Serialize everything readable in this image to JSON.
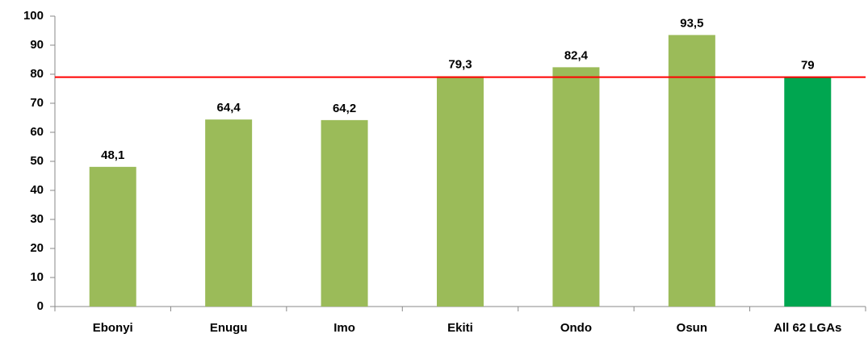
{
  "chart_data": {
    "type": "bar",
    "categories": [
      "Ebonyi",
      "Enugu",
      "Imo",
      "Ekiti",
      "Ondo",
      "Osun",
      "All 62 LGAs"
    ],
    "values": [
      48.1,
      64.4,
      64.2,
      79.3,
      82.4,
      93.5,
      79
    ],
    "value_labels": [
      "48,1",
      "64,4",
      "64,2",
      "79,3",
      "82,4",
      "93,5",
      "79"
    ],
    "colors": [
      "#9bbb59",
      "#9bbb59",
      "#9bbb59",
      "#9bbb59",
      "#9bbb59",
      "#9bbb59",
      "#00a650"
    ],
    "ylim": [
      0,
      100
    ],
    "yticks": [
      0,
      10,
      20,
      30,
      40,
      50,
      60,
      70,
      80,
      90,
      100
    ],
    "reference_line": {
      "value": 79,
      "color": "#ff0000"
    }
  }
}
